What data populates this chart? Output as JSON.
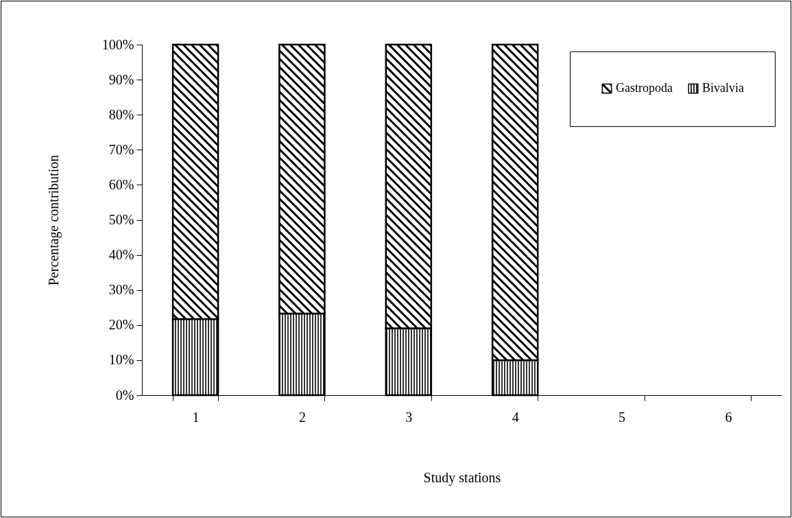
{
  "chart_data": {
    "type": "bar",
    "xlabel": "Study stations",
    "ylabel": "Percentage contribution",
    "categories": [
      "1",
      "2",
      "3",
      "4",
      "5",
      "6"
    ],
    "stacked": true,
    "series": [
      {
        "name": "Bivalvia",
        "color": "#000000",
        "values": [
          21.7,
          23.3,
          19.1,
          10.0,
          null,
          null
        ]
      },
      {
        "name": "Gastropoda",
        "color": "#000000",
        "values": [
          78.3,
          76.7,
          80.9,
          90.0,
          null,
          null
        ]
      }
    ],
    "ylim": [
      0,
      100
    ],
    "yticks": [
      {
        "value": 0,
        "label": "0%"
      },
      {
        "value": 10,
        "label": "10%"
      },
      {
        "value": 20,
        "label": "20%"
      },
      {
        "value": 30,
        "label": "30%"
      },
      {
        "value": 40,
        "label": "40%"
      },
      {
        "value": 50,
        "label": "50%"
      },
      {
        "value": 60,
        "label": "60%"
      },
      {
        "value": 70,
        "label": "70%"
      },
      {
        "value": 80,
        "label": "80%"
      },
      {
        "value": 90,
        "label": "90%"
      },
      {
        "value": 100,
        "label": "100%"
      }
    ],
    "grid": false,
    "legend": "top right"
  }
}
